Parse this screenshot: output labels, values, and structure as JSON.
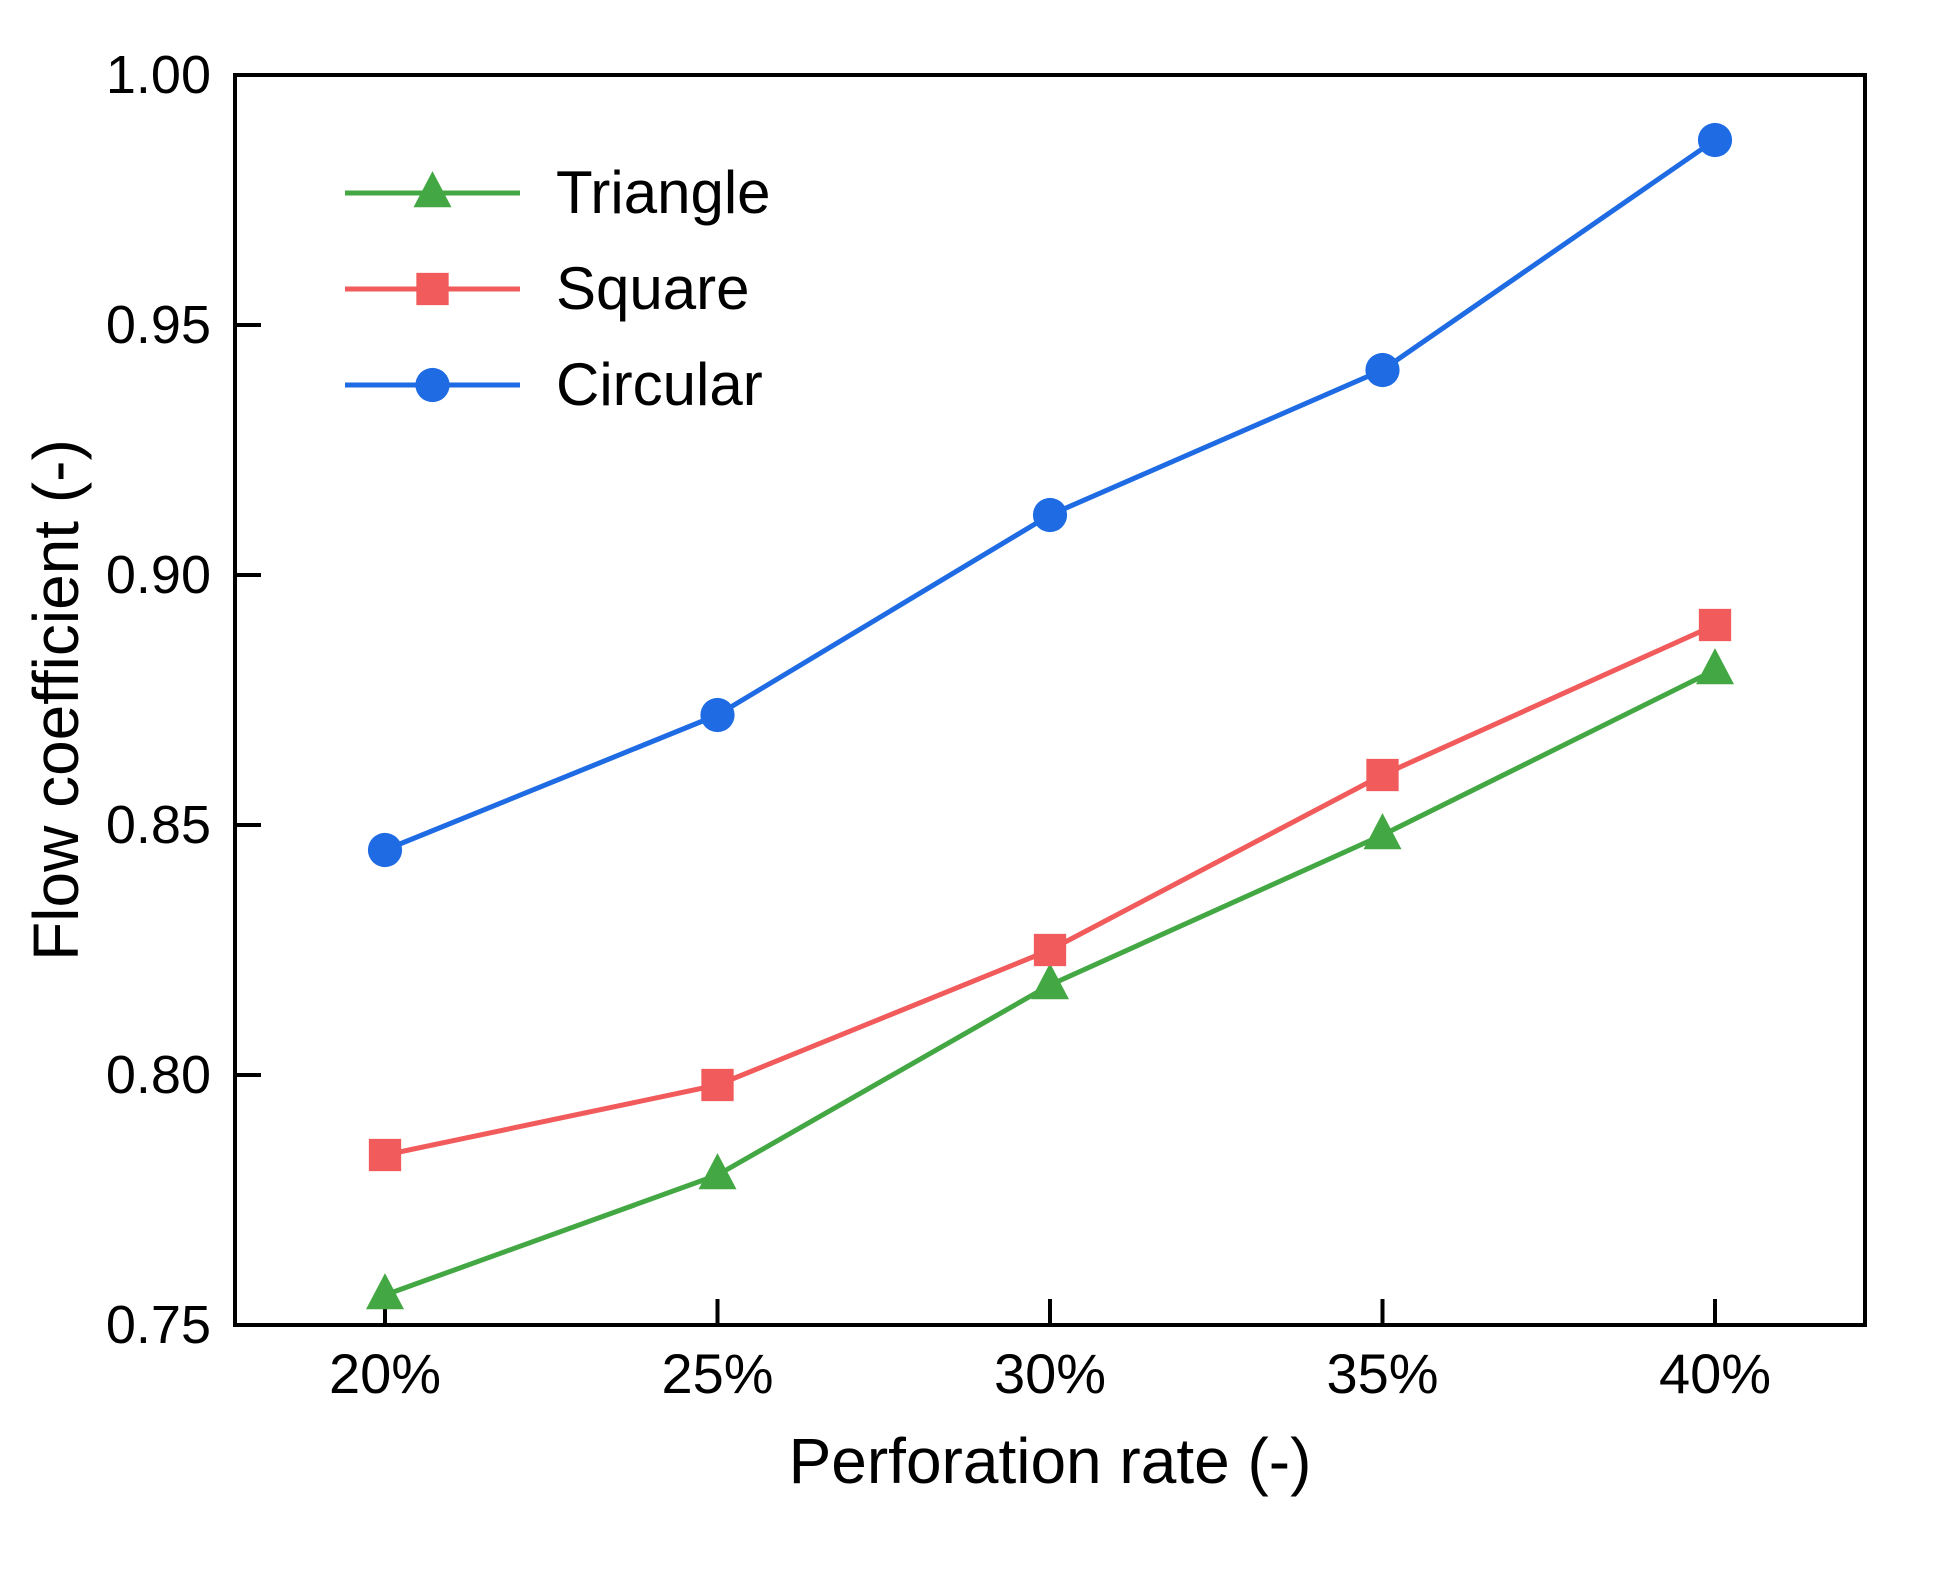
{
  "chart_data": {
    "type": "line",
    "title": "",
    "xlabel": "Perforation rate (-)",
    "ylabel": "Flow coefficient (-)",
    "categories": [
      "20%",
      "25%",
      "30%",
      "35%",
      "40%"
    ],
    "x_values": [
      20,
      25,
      30,
      35,
      40
    ],
    "ylim": [
      0.75,
      1.0
    ],
    "ytick_step": 0.05,
    "ytick_labels": [
      "0.75",
      "0.80",
      "0.85",
      "0.90",
      "0.95",
      "1.00"
    ],
    "grid": false,
    "legend_position": "top-left",
    "frame_color": "#000000",
    "series": [
      {
        "name": "Triangle",
        "marker": "triangle",
        "color": "#43a843",
        "values": [
          0.756,
          0.78,
          0.818,
          0.848,
          0.881
        ]
      },
      {
        "name": "Square",
        "marker": "square",
        "color": "#f25b5b",
        "values": [
          0.784,
          0.798,
          0.825,
          0.86,
          0.89
        ]
      },
      {
        "name": "Circular",
        "marker": "circle",
        "color": "#1e6be4",
        "values": [
          0.845,
          0.872,
          0.912,
          0.941,
          0.987
        ]
      }
    ]
  }
}
